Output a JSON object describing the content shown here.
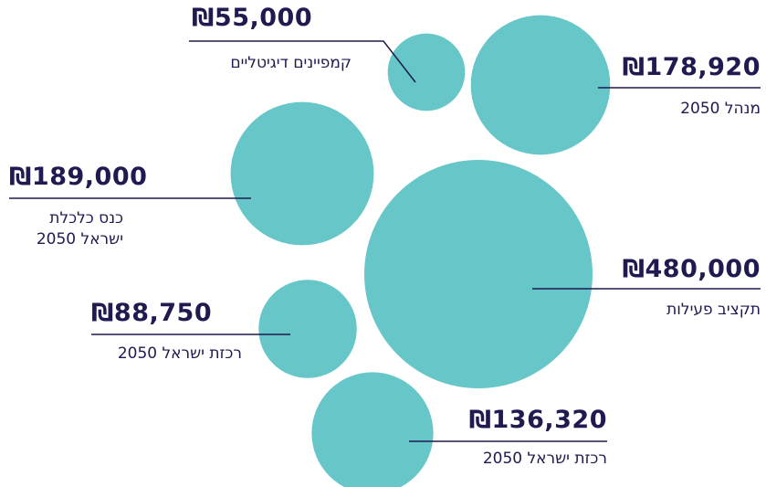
{
  "chart_data": {
    "type": "bubble",
    "color": "#67c7c8",
    "categories": [
      "קמפיינים דיגיטליים",
      "מנהל 2050",
      "כנס כלכלת ישראל 2050",
      "תקציב פעילות",
      "רכזת ישראל 2050",
      "רכזת ישראל 2050"
    ],
    "values": [
      55000,
      178920,
      189000,
      480000,
      88750,
      136320
    ],
    "value_labels": [
      "₪55,000",
      "₪178,920",
      "₪189,000",
      "₪480,000",
      "₪88,750",
      "₪136,320"
    ]
  }
}
